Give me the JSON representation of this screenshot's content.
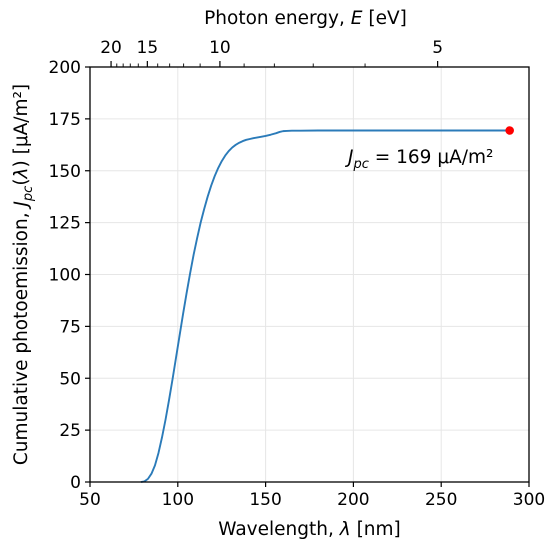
{
  "chart_data": {
    "type": "line",
    "xlabel": {
      "pre": "Wavelength, ",
      "sym": "λ",
      "post": " [nm]"
    },
    "ylabel": {
      "pre": "Cumulative photoemission, ",
      "sym": "J",
      "sub": "pc",
      "mid": "(",
      "sym2": "λ",
      "post": ") [μA/m²]"
    },
    "top_xlabel": {
      "pre": "Photon energy, ",
      "sym": "E",
      "post": " [eV]"
    },
    "xlim": [
      50,
      300
    ],
    "ylim": [
      0,
      200
    ],
    "xticks": [
      50,
      100,
      150,
      200,
      250,
      300
    ],
    "yticks": [
      0,
      25,
      50,
      75,
      100,
      125,
      150,
      175,
      200
    ],
    "top_ticks": [
      {
        "ev": 20,
        "label": "20"
      },
      {
        "ev": 15,
        "label": "15"
      },
      {
        "ev": 10,
        "label": "10"
      },
      {
        "ev": 5,
        "label": "5"
      }
    ],
    "top_minor_ev": [
      19,
      18,
      17,
      16,
      14,
      13,
      12,
      11,
      9,
      8,
      7,
      6
    ],
    "grid": true,
    "series": [
      {
        "color": "#2b7bb9",
        "x": [
          79,
          81,
          83,
          85,
          87,
          89,
          91,
          93,
          95,
          97,
          99,
          101,
          103,
          105,
          107,
          109,
          111,
          113,
          115,
          117,
          119,
          121,
          123,
          125,
          127,
          129,
          131,
          133,
          135,
          137,
          139,
          141,
          143,
          145,
          147,
          150,
          153,
          156,
          158,
          160,
          162,
          165,
          170,
          180,
          200,
          230,
          260,
          289
        ],
        "y": [
          0,
          0.3,
          1.5,
          4,
          8,
          14,
          21.5,
          30,
          39.5,
          49.5,
          60,
          70.5,
          81,
          91,
          100.5,
          109.5,
          117.5,
          125,
          131.5,
          137.5,
          142.8,
          147.4,
          151.3,
          154.6,
          157.3,
          159.5,
          161.2,
          162.5,
          163.5,
          164.3,
          164.9,
          165.3,
          165.7,
          166,
          166.3,
          166.8,
          167.4,
          168.1,
          168.7,
          169.1,
          169.2,
          169.3,
          169.3,
          169.4,
          169.4,
          169.4,
          169.4,
          169.4
        ]
      }
    ],
    "endpoint": {
      "x": 289,
      "y": 169.4,
      "color": "#ff0000"
    },
    "annotation": {
      "sym": "J",
      "sub": "pc",
      "text": " = 169 μA/m²"
    }
  }
}
